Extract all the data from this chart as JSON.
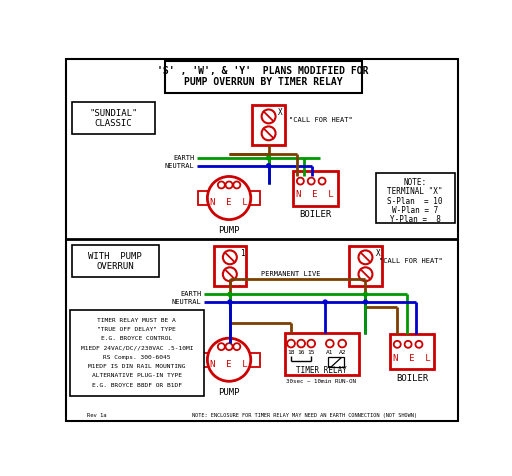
{
  "title_line1": "'S' , 'W', & 'Y'  PLANS MODIFIED FOR",
  "title_line2": "PUMP OVERRUN BY TIMER RELAY",
  "bg_color": "#ffffff",
  "red": "#cc0000",
  "green": "#009900",
  "blue": "#0000cc",
  "brown": "#7B3F00",
  "black": "#000000",
  "sundial_label1": "\"SUNDIAL\"",
  "sundial_label2": "CLASSIC",
  "pump_label": "PUMP",
  "boiler_label": "BOILER",
  "nel": "N  E  L",
  "call_heat": "\"CALL FOR HEAT\"",
  "perm_live": "PERMANENT LIVE",
  "earth_lbl": "EARTH",
  "neutral_lbl": "NEUTRAL",
  "note_title": "NOTE:",
  "note_line1": "TERMINAL \"X\"",
  "note_line2": "S-Plan  = 10",
  "note_line3": "W-Plan = 7",
  "note_line4": "Y-Plan =  8",
  "with_pump1": "WITH  PUMP",
  "with_pump2": "OVERRUN",
  "timer_relay_lbl": "TIMER RELAY",
  "timer_run": "30sec ~ 10min RUN-ON",
  "bottom_note": "NOTE: ENCLOSURE FOR TIMER RELAY MAY NEED AN EARTH CONNECTION (NOT SHOWN)",
  "rev": "Rev 1a",
  "note2_lines": [
    "TIMER RELAY MUST BE A",
    "\"TRUE OFF DELAY\" TYPE",
    "E.G. BROYCE CONTROL",
    "M1EDF 24VAC/DC//230VAC .5-10MI",
    "RS Comps. 300-6045",
    "M1EDF IS DIN RAIL MOUNTING",
    "ALTERNATIVE PLUG-IN TYPE",
    "E.G. BROYCE B8DF OR B1DF"
  ]
}
